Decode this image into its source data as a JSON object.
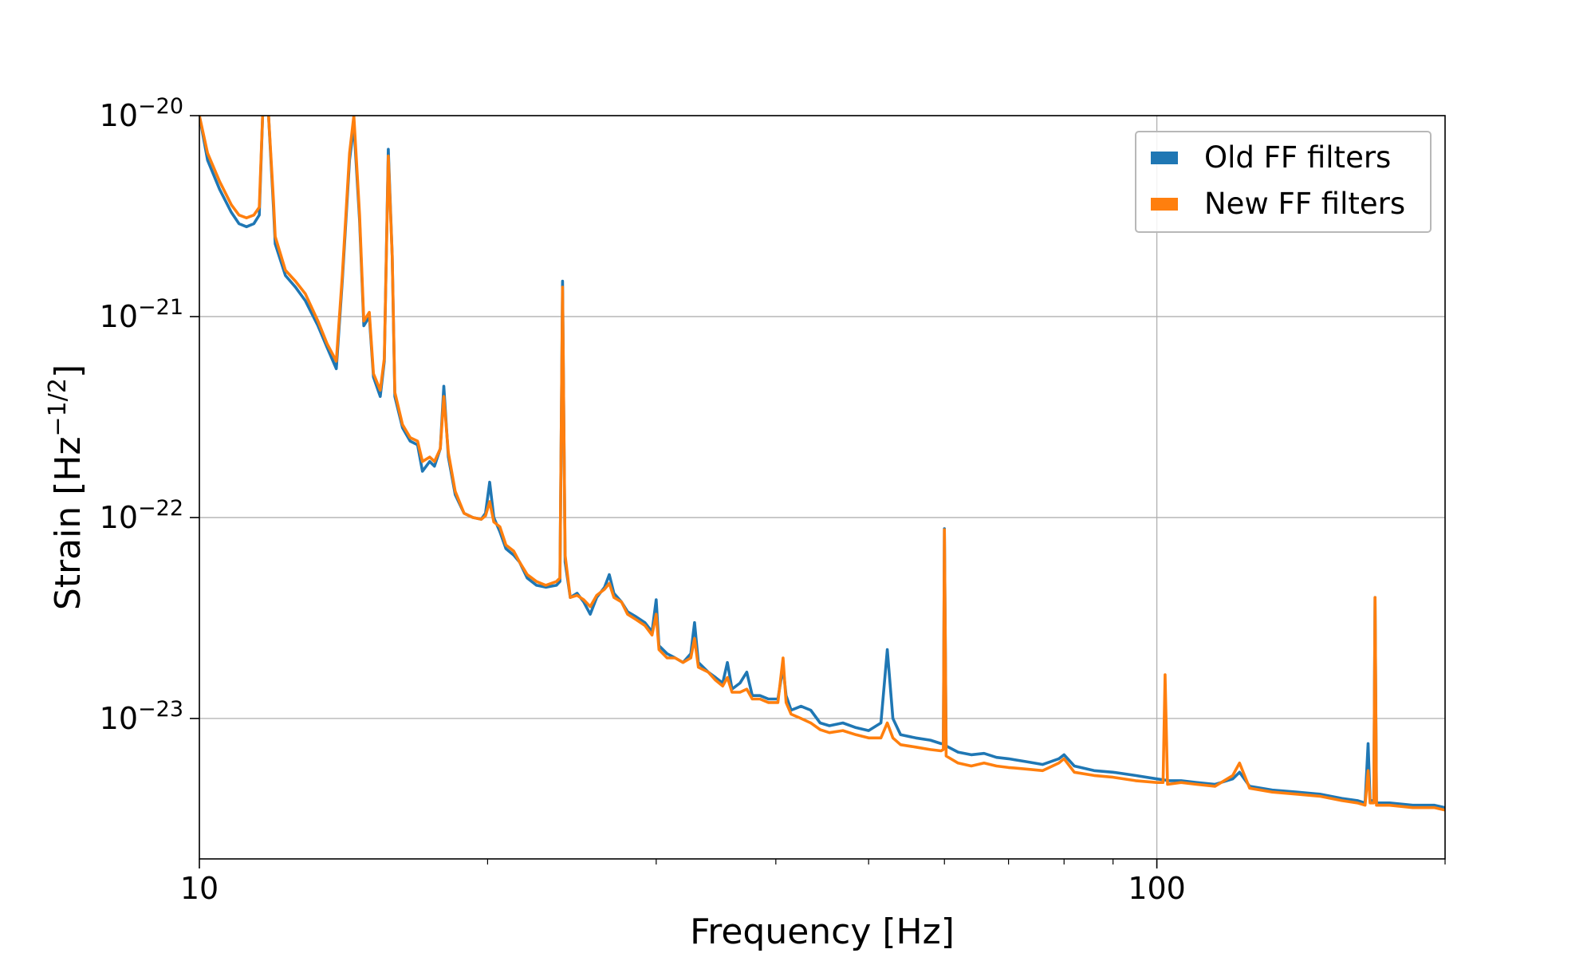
{
  "chart_data": {
    "type": "line",
    "title": "",
    "xlabel": "Frequency [Hz]",
    "ylabel_base": "Strain [Hz",
    "ylabel_exp": "−1/2",
    "ylabel_tail": "]",
    "xscale": "log",
    "yscale": "log",
    "xlim": [
      10,
      200
    ],
    "ylim": [
      2e-24,
      1e-20
    ],
    "grid": true,
    "legend_position": "top-right",
    "x_ticks": [
      {
        "value": 10,
        "label": "10"
      },
      {
        "value": 100,
        "label": "100"
      }
    ],
    "x_minor_ticks": [
      20,
      30,
      40,
      50,
      60,
      70,
      80,
      90,
      200
    ],
    "y_ticks": [
      {
        "value": 1e-20,
        "base": "10",
        "exp": "−20"
      },
      {
        "value": 1e-21,
        "base": "10",
        "exp": "−21"
      },
      {
        "value": 1e-22,
        "base": "10",
        "exp": "−22"
      },
      {
        "value": 1e-23,
        "base": "10",
        "exp": "−23"
      }
    ],
    "series": [
      {
        "name": "Old FF filters",
        "color": "#1f77b4",
        "points": [
          [
            10.0,
            1e-20
          ],
          [
            10.2,
            6e-21
          ],
          [
            10.5,
            4.3e-21
          ],
          [
            10.8,
            3.3e-21
          ],
          [
            11.0,
            2.9e-21
          ],
          [
            11.2,
            2.8e-21
          ],
          [
            11.4,
            2.9e-21
          ],
          [
            11.55,
            3.2e-21
          ],
          [
            11.65,
            1.2e-20
          ],
          [
            11.8,
            1.2e-20
          ],
          [
            11.95,
            3.5e-21
          ],
          [
            12.0,
            2.3e-21
          ],
          [
            12.3,
            1.6e-21
          ],
          [
            12.6,
            1.4e-21
          ],
          [
            12.9,
            1.2e-21
          ],
          [
            13.3,
            9e-22
          ],
          [
            13.6,
            7e-22
          ],
          [
            13.9,
            5.5e-22
          ],
          [
            14.1,
            1.5e-21
          ],
          [
            14.35,
            6e-21
          ],
          [
            14.5,
            9e-21
          ],
          [
            14.7,
            3e-21
          ],
          [
            14.85,
            9e-22
          ],
          [
            15.05,
            1e-21
          ],
          [
            15.2,
            5e-22
          ],
          [
            15.45,
            4e-22
          ],
          [
            15.6,
            6e-22
          ],
          [
            15.75,
            6.8e-21
          ],
          [
            15.9,
            2e-21
          ],
          [
            16.0,
            4e-22
          ],
          [
            16.3,
            2.8e-22
          ],
          [
            16.6,
            2.4e-22
          ],
          [
            16.9,
            2.3e-22
          ],
          [
            17.1,
            1.7e-22
          ],
          [
            17.4,
            1.9e-22
          ],
          [
            17.6,
            1.8e-22
          ],
          [
            17.85,
            2.2e-22
          ],
          [
            18.0,
            4.5e-22
          ],
          [
            18.2,
            2e-22
          ],
          [
            18.5,
            1.3e-22
          ],
          [
            18.9,
            1.05e-22
          ],
          [
            19.3,
            1e-22
          ],
          [
            19.7,
            9.8e-23
          ],
          [
            19.9,
            1.05e-22
          ],
          [
            20.1,
            1.5e-22
          ],
          [
            20.3,
            1e-22
          ],
          [
            20.6,
            8.5e-23
          ],
          [
            20.9,
            7e-23
          ],
          [
            21.3,
            6.5e-23
          ],
          [
            21.6,
            6e-23
          ],
          [
            22.0,
            5e-23
          ],
          [
            22.5,
            4.6e-23
          ],
          [
            23.0,
            4.5e-23
          ],
          [
            23.6,
            4.6e-23
          ],
          [
            23.8,
            4.8e-23
          ],
          [
            23.95,
            1.5e-21
          ],
          [
            24.1,
            6e-23
          ],
          [
            24.4,
            4e-23
          ],
          [
            24.8,
            4.2e-23
          ],
          [
            25.2,
            3.8e-23
          ],
          [
            25.6,
            3.3e-23
          ],
          [
            26.0,
            4e-23
          ],
          [
            26.5,
            4.5e-23
          ],
          [
            26.8,
            5.2e-23
          ],
          [
            27.1,
            4.2e-23
          ],
          [
            27.6,
            3.8e-23
          ],
          [
            28.0,
            3.4e-23
          ],
          [
            28.6,
            3.2e-23
          ],
          [
            29.2,
            3e-23
          ],
          [
            29.7,
            2.7e-23
          ],
          [
            30.0,
            3.9e-23
          ],
          [
            30.2,
            2.3e-23
          ],
          [
            30.8,
            2.1e-23
          ],
          [
            31.4,
            2e-23
          ],
          [
            32.0,
            1.9e-23
          ],
          [
            32.6,
            2.1e-23
          ],
          [
            32.9,
            3e-23
          ],
          [
            33.2,
            1.9e-23
          ],
          [
            34.0,
            1.7e-23
          ],
          [
            34.6,
            1.6e-23
          ],
          [
            35.2,
            1.5e-23
          ],
          [
            35.6,
            1.9e-23
          ],
          [
            36.0,
            1.4e-23
          ],
          [
            36.7,
            1.5e-23
          ],
          [
            37.3,
            1.7e-23
          ],
          [
            37.8,
            1.3e-23
          ],
          [
            38.5,
            1.3e-23
          ],
          [
            39.3,
            1.25e-23
          ],
          [
            40.2,
            1.25e-23
          ],
          [
            40.7,
            1.8e-23
          ],
          [
            41.0,
            1.3e-23
          ],
          [
            41.5,
            1.1e-23
          ],
          [
            42.5,
            1.15e-23
          ],
          [
            43.5,
            1.1e-23
          ],
          [
            44.5,
            9.5e-24
          ],
          [
            45.5,
            9.2e-24
          ],
          [
            47.0,
            9.5e-24
          ],
          [
            48.5,
            9e-24
          ],
          [
            50.0,
            8.7e-24
          ],
          [
            51.5,
            9.5e-24
          ],
          [
            52.3,
            2.2e-23
          ],
          [
            53.0,
            1e-23
          ],
          [
            54.0,
            8.3e-24
          ],
          [
            56.0,
            8e-24
          ],
          [
            58.0,
            7.8e-24
          ],
          [
            59.5,
            7.5e-24
          ],
          [
            59.85,
            7.5e-24
          ],
          [
            60.0,
            8.8e-23
          ],
          [
            60.25,
            7.3e-24
          ],
          [
            62.0,
            6.8e-24
          ],
          [
            64.0,
            6.6e-24
          ],
          [
            66.0,
            6.7e-24
          ],
          [
            68.0,
            6.4e-24
          ],
          [
            70.0,
            6.3e-24
          ],
          [
            73.0,
            6.1e-24
          ],
          [
            76.0,
            5.9e-24
          ],
          [
            79.0,
            6.3e-24
          ],
          [
            80.0,
            6.6e-24
          ],
          [
            82.0,
            5.8e-24
          ],
          [
            86.0,
            5.5e-24
          ],
          [
            90.0,
            5.4e-24
          ],
          [
            95.0,
            5.2e-24
          ],
          [
            100.0,
            5e-24
          ],
          [
            103.0,
            4.9e-24
          ],
          [
            106.0,
            4.9e-24
          ],
          [
            110.0,
            4.8e-24
          ],
          [
            115.0,
            4.7e-24
          ],
          [
            120.0,
            5e-24
          ],
          [
            122.0,
            5.4e-24
          ],
          [
            125.0,
            4.6e-24
          ],
          [
            132.0,
            4.4e-24
          ],
          [
            140.0,
            4.3e-24
          ],
          [
            148.0,
            4.2e-24
          ],
          [
            156.0,
            4e-24
          ],
          [
            162.0,
            3.9e-24
          ],
          [
            165.0,
            3.8e-24
          ],
          [
            166.2,
            7.5e-24
          ],
          [
            167.0,
            3.9e-24
          ],
          [
            168.5,
            3.9e-24
          ],
          [
            169.0,
            4e-23
          ],
          [
            169.6,
            3.8e-24
          ],
          [
            175.0,
            3.8e-24
          ],
          [
            185.0,
            3.7e-24
          ],
          [
            195.0,
            3.7e-24
          ],
          [
            200.0,
            3.6e-24
          ]
        ]
      },
      {
        "name": "New FF filters",
        "color": "#ff7f0e",
        "points": [
          [
            10.0,
            1e-20
          ],
          [
            10.2,
            6.5e-21
          ],
          [
            10.5,
            4.7e-21
          ],
          [
            10.8,
            3.6e-21
          ],
          [
            11.0,
            3.2e-21
          ],
          [
            11.2,
            3.1e-21
          ],
          [
            11.4,
            3.2e-21
          ],
          [
            11.55,
            3.5e-21
          ],
          [
            11.65,
            1.2e-20
          ],
          [
            11.8,
            1.2e-20
          ],
          [
            11.95,
            3.8e-21
          ],
          [
            12.0,
            2.5e-21
          ],
          [
            12.3,
            1.7e-21
          ],
          [
            12.6,
            1.5e-21
          ],
          [
            12.9,
            1.3e-21
          ],
          [
            13.3,
            9.5e-22
          ],
          [
            13.6,
            7.3e-22
          ],
          [
            13.9,
            6e-22
          ],
          [
            14.1,
            1.6e-21
          ],
          [
            14.35,
            6.5e-21
          ],
          [
            14.5,
            1e-20
          ],
          [
            14.7,
            3.2e-21
          ],
          [
            14.85,
            9.5e-22
          ],
          [
            15.05,
            1.05e-21
          ],
          [
            15.2,
            5.2e-22
          ],
          [
            15.45,
            4.3e-22
          ],
          [
            15.6,
            6.2e-22
          ],
          [
            15.75,
            6.3e-21
          ],
          [
            15.9,
            2e-21
          ],
          [
            16.0,
            4.2e-22
          ],
          [
            16.3,
            2.9e-22
          ],
          [
            16.6,
            2.5e-22
          ],
          [
            16.9,
            2.4e-22
          ],
          [
            17.1,
            1.9e-22
          ],
          [
            17.4,
            2e-22
          ],
          [
            17.6,
            1.9e-22
          ],
          [
            17.85,
            2.2e-22
          ],
          [
            18.0,
            4e-22
          ],
          [
            18.2,
            2.1e-22
          ],
          [
            18.5,
            1.35e-22
          ],
          [
            18.9,
            1.05e-22
          ],
          [
            19.3,
            1e-22
          ],
          [
            19.7,
            9.8e-23
          ],
          [
            19.9,
            1.02e-22
          ],
          [
            20.1,
            1.2e-22
          ],
          [
            20.3,
            9.5e-23
          ],
          [
            20.6,
            9e-23
          ],
          [
            20.9,
            7.3e-23
          ],
          [
            21.3,
            6.8e-23
          ],
          [
            21.6,
            6e-23
          ],
          [
            22.0,
            5.2e-23
          ],
          [
            22.5,
            4.8e-23
          ],
          [
            23.0,
            4.6e-23
          ],
          [
            23.6,
            4.8e-23
          ],
          [
            23.8,
            5e-23
          ],
          [
            23.95,
            1.4e-21
          ],
          [
            24.1,
            6.5e-23
          ],
          [
            24.4,
            4e-23
          ],
          [
            24.8,
            4.1e-23
          ],
          [
            25.2,
            3.9e-23
          ],
          [
            25.6,
            3.6e-23
          ],
          [
            26.0,
            4.1e-23
          ],
          [
            26.5,
            4.4e-23
          ],
          [
            26.8,
            4.7e-23
          ],
          [
            27.1,
            4e-23
          ],
          [
            27.6,
            3.8e-23
          ],
          [
            28.0,
            3.3e-23
          ],
          [
            28.6,
            3.1e-23
          ],
          [
            29.2,
            2.9e-23
          ],
          [
            29.7,
            2.6e-23
          ],
          [
            30.0,
            3.3e-23
          ],
          [
            30.2,
            2.2e-23
          ],
          [
            30.8,
            2e-23
          ],
          [
            31.4,
            2e-23
          ],
          [
            32.0,
            1.9e-23
          ],
          [
            32.6,
            2e-23
          ],
          [
            32.9,
            2.5e-23
          ],
          [
            33.2,
            1.8e-23
          ],
          [
            34.0,
            1.7e-23
          ],
          [
            34.6,
            1.55e-23
          ],
          [
            35.2,
            1.45e-23
          ],
          [
            35.6,
            1.6e-23
          ],
          [
            36.0,
            1.35e-23
          ],
          [
            36.7,
            1.35e-23
          ],
          [
            37.3,
            1.4e-23
          ],
          [
            37.8,
            1.25e-23
          ],
          [
            38.5,
            1.25e-23
          ],
          [
            39.3,
            1.2e-23
          ],
          [
            40.2,
            1.2e-23
          ],
          [
            40.7,
            2e-23
          ],
          [
            41.0,
            1.2e-23
          ],
          [
            41.5,
            1.05e-23
          ],
          [
            42.5,
            1e-23
          ],
          [
            43.5,
            9.5e-24
          ],
          [
            44.5,
            8.8e-24
          ],
          [
            45.5,
            8.5e-24
          ],
          [
            47.0,
            8.7e-24
          ],
          [
            48.5,
            8.3e-24
          ],
          [
            50.0,
            8e-24
          ],
          [
            51.5,
            8e-24
          ],
          [
            52.3,
            9.5e-24
          ],
          [
            53.0,
            8e-24
          ],
          [
            54.0,
            7.4e-24
          ],
          [
            56.0,
            7.2e-24
          ],
          [
            58.0,
            7e-24
          ],
          [
            59.5,
            6.9e-24
          ],
          [
            59.85,
            7e-24
          ],
          [
            60.0,
            8.7e-23
          ],
          [
            60.25,
            6.5e-24
          ],
          [
            62.0,
            6e-24
          ],
          [
            64.0,
            5.8e-24
          ],
          [
            66.0,
            6e-24
          ],
          [
            68.0,
            5.8e-24
          ],
          [
            70.0,
            5.7e-24
          ],
          [
            73.0,
            5.6e-24
          ],
          [
            76.0,
            5.5e-24
          ],
          [
            79.0,
            6e-24
          ],
          [
            80.0,
            6.3e-24
          ],
          [
            82.0,
            5.4e-24
          ],
          [
            86.0,
            5.2e-24
          ],
          [
            90.0,
            5.1e-24
          ],
          [
            95.0,
            4.9e-24
          ],
          [
            100.0,
            4.8e-24
          ],
          [
            101.5,
            4.8e-24
          ],
          [
            102.0,
            1.65e-23
          ],
          [
            102.6,
            4.7e-24
          ],
          [
            106.0,
            4.8e-24
          ],
          [
            110.0,
            4.7e-24
          ],
          [
            115.0,
            4.6e-24
          ],
          [
            120.0,
            5.2e-24
          ],
          [
            122.0,
            6e-24
          ],
          [
            125.0,
            4.5e-24
          ],
          [
            132.0,
            4.3e-24
          ],
          [
            140.0,
            4.2e-24
          ],
          [
            148.0,
            4.1e-24
          ],
          [
            156.0,
            3.9e-24
          ],
          [
            162.0,
            3.8e-24
          ],
          [
            165.0,
            3.7e-24
          ],
          [
            166.2,
            5.5e-24
          ],
          [
            167.0,
            3.8e-24
          ],
          [
            168.5,
            3.8e-24
          ],
          [
            169.0,
            4e-23
          ],
          [
            169.6,
            3.7e-24
          ],
          [
            175.0,
            3.7e-24
          ],
          [
            185.0,
            3.6e-24
          ],
          [
            195.0,
            3.6e-24
          ],
          [
            200.0,
            3.5e-24
          ]
        ]
      }
    ]
  }
}
